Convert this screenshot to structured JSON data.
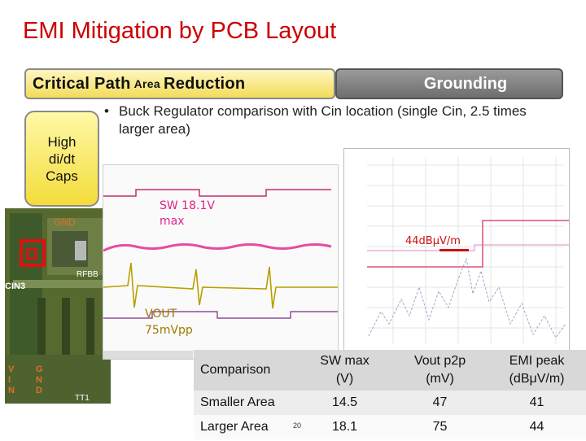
{
  "title": "EMI Mitigation by PCB Layout",
  "tabs": {
    "critical_part1": "Critical Path",
    "critical_small": "Area",
    "critical_part2": "Reduction",
    "grounding": "Grounding"
  },
  "caps_box": {
    "line1": "High",
    "line2": "di/dt",
    "line3": "Caps"
  },
  "bullet": "Buck Regulator comparison with Cin location (single Cin, 2.5 times larger area)",
  "pcb_labels": {
    "gnd": "GND",
    "cin": "CIN3",
    "rfb": "RFBB",
    "vin": [
      "V",
      "I",
      "N"
    ],
    "gnd_vert": [
      "G",
      "N",
      "D"
    ],
    "tt": "TT1"
  },
  "scope_labels": {
    "sw_line1": "SW 18.1V",
    "sw_line2": "max",
    "vout_line1": "VOUT",
    "vout_line2": "75mVpp"
  },
  "emi_label": "44dBμV/m",
  "table": {
    "headers": [
      "Comparison",
      "SW max\n(V)",
      "Vout p2p\n(mV)",
      "EMI peak\n(dBμV/m)"
    ],
    "header_lines": [
      [
        "Comparison"
      ],
      [
        "SW max",
        "(V)"
      ],
      [
        "Vout p2p",
        "(mV)"
      ],
      [
        "EMI peak",
        "(dBμV/m)"
      ]
    ],
    "rows": [
      [
        "Smaller Area",
        "14.5",
        "47",
        "41"
      ],
      [
        "Larger Area",
        "18.1",
        "75",
        "44"
      ]
    ]
  },
  "slide_number": "20",
  "colors": {
    "title": "#cc0000",
    "sw_trace": "#e0228a",
    "vout_trace": "#b8a000",
    "emi_limit": "#e05070"
  }
}
